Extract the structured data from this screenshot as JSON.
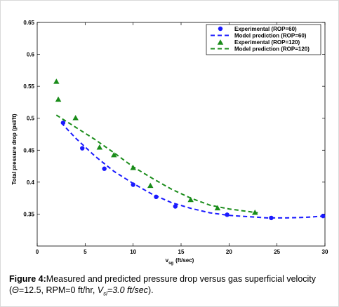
{
  "chart_data": {
    "type": "scatter",
    "xlim": [
      0,
      30
    ],
    "ylim": [
      0.3,
      0.65
    ],
    "xticks": [
      "0",
      "5",
      "10",
      "15",
      "20",
      "25",
      "30"
    ],
    "yticks": [
      "0.35",
      "0.4",
      "0.45",
      "0.5",
      "0.55",
      "0.6",
      "0.65"
    ],
    "xlabel_main": "v",
    "xlabel_sub": "sg",
    "xlabel_unit": "(ft/sec)",
    "ylabel": "Total pressure drop (psi/ft)",
    "legend_position": "top-right",
    "series": [
      {
        "name": "Experimental (ROP=60)",
        "kind": "points",
        "marker": "circle",
        "color": "#1a1aff",
        "x": [
          2.7,
          4.7,
          7.0,
          10.0,
          12.4,
          14.4,
          19.8,
          24.4,
          29.8
        ],
        "y": [
          0.493,
          0.453,
          0.421,
          0.396,
          0.377,
          0.362,
          0.349,
          0.344,
          0.347
        ]
      },
      {
        "name": "Model prediction (ROP=60)",
        "kind": "line",
        "dash": "dashed",
        "color": "#1a1aff",
        "x": [
          2.5,
          4.0,
          6.0,
          8.0,
          10.0,
          12.0,
          14.0,
          16.0,
          18.0,
          20.0,
          22.0,
          24.0,
          26.0,
          28.0,
          30.0
        ],
        "y": [
          0.493,
          0.469,
          0.441,
          0.417,
          0.398,
          0.381,
          0.368,
          0.359,
          0.352,
          0.348,
          0.346,
          0.344,
          0.344,
          0.345,
          0.347
        ]
      },
      {
        "name": "Experimental (ROP=120)",
        "kind": "points",
        "marker": "triangle",
        "color": "#1a8c1a",
        "x": [
          2.0,
          2.2,
          4.0,
          6.5,
          8.0,
          10.0,
          11.8,
          16.0,
          18.8,
          22.7
        ],
        "y": [
          0.558,
          0.53,
          0.501,
          0.455,
          0.443,
          0.423,
          0.395,
          0.373,
          0.36,
          0.353
        ]
      },
      {
        "name": "Model prediction (ROP=120)",
        "kind": "line",
        "dash": "dashed",
        "color": "#1a8c1a",
        "x": [
          2.0,
          4.0,
          6.0,
          8.0,
          10.0,
          12.0,
          14.0,
          16.0,
          18.0,
          20.0,
          22.0,
          23.0
        ],
        "y": [
          0.505,
          0.486,
          0.467,
          0.446,
          0.424,
          0.406,
          0.389,
          0.375,
          0.364,
          0.358,
          0.354,
          0.352
        ]
      }
    ]
  },
  "caption": {
    "label": "Figure 4:",
    "text_1": "Measured and predicted pressure drop versus gas superficial velocity (",
    "theta": "Θ",
    "text_2": "=12.5, RPM=0 ft/hr, ",
    "v": "V",
    "v_sub": "sl",
    "text_3": "=3.0 ft/sec",
    "text_4": ")."
  }
}
